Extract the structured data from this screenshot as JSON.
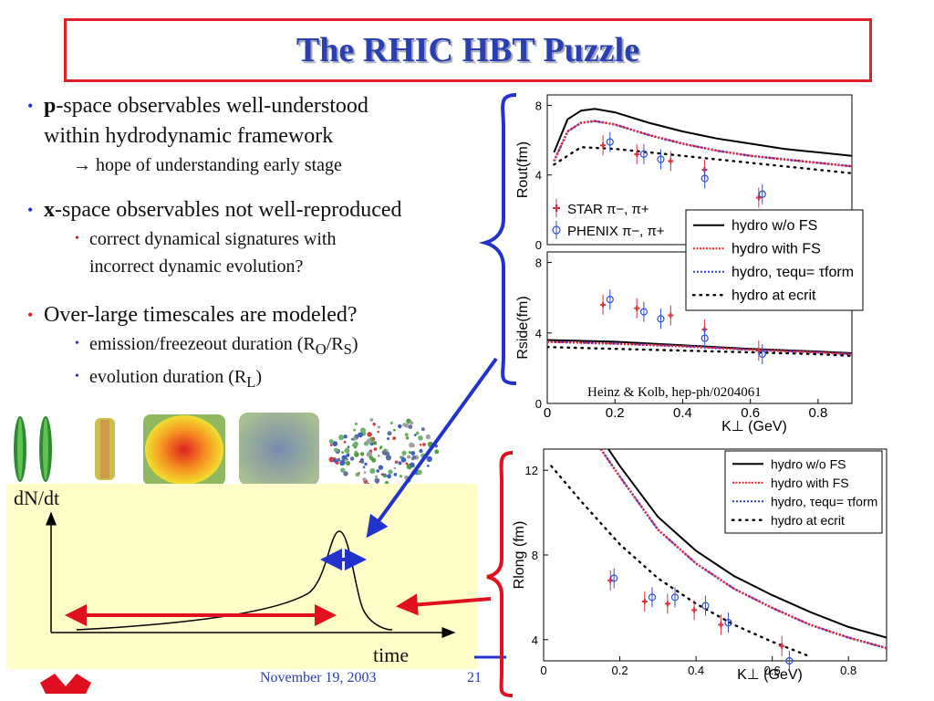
{
  "slide": {
    "title": "The RHIC HBT Puzzle",
    "footer_date": "November 19, 2003",
    "footer_page": "21",
    "credit": "Heinz & Kolb, hep-ph/0204061"
  },
  "bullets": {
    "b1_bold": "p",
    "b1_rest": "-space observables well-understood",
    "b1_line2": "within hydrodynamic framework",
    "b1_sub": "→ hope of understanding early stage",
    "b2_bold": "x",
    "b2_rest": "-space observables not well-reproduced",
    "b2_sub1_line1": "correct dynamical signatures with",
    "b2_sub1_line2": "incorrect dynamic evolution?",
    "b3": "Over-large timescales are modeled?",
    "b3_sub1_a": "emission/freezeout duration (R",
    "b3_sub1_sub1": "O",
    "b3_sub1_b": "/R",
    "b3_sub1_sub2": "S",
    "b3_sub1_c": ")",
    "b3_sub2_a": "evolution duration (R",
    "b3_sub2_sub": "L",
    "b3_sub2_b": ")"
  },
  "sketch": {
    "ylabel": "dN/dt",
    "xlabel": "time"
  },
  "colors": {
    "title": "#2a3fb0",
    "title_border": "#e0202a",
    "bullet_blue": "#2233cc",
    "bullet_red": "#d6202a",
    "panel_yellow": "#fffdc8",
    "star_color": "#e03040",
    "phenix_color": "#3050d0"
  },
  "chart_data": [
    {
      "type": "line",
      "panel": "R_out",
      "ylabel": "Rout(fm)",
      "xlim": [
        0,
        0.9
      ],
      "ylim": [
        0,
        8.6
      ],
      "yticks": [
        0,
        4,
        8
      ],
      "series": [
        {
          "name": "hydro w/o FS",
          "x": [
            0.02,
            0.06,
            0.1,
            0.14,
            0.2,
            0.3,
            0.4,
            0.5,
            0.6,
            0.7,
            0.8,
            0.9
          ],
          "y": [
            5.3,
            7.2,
            7.7,
            7.8,
            7.6,
            7.0,
            6.5,
            6.1,
            5.8,
            5.5,
            5.3,
            5.1
          ]
        },
        {
          "name": "hydro with FS",
          "x": [
            0.02,
            0.06,
            0.1,
            0.14,
            0.2,
            0.3,
            0.4,
            0.5,
            0.6,
            0.7,
            0.8,
            0.9
          ],
          "y": [
            4.8,
            6.5,
            7.0,
            7.1,
            6.9,
            6.3,
            5.8,
            5.4,
            5.1,
            4.9,
            4.7,
            4.5
          ]
        },
        {
          "name": "hydro at ecrit",
          "x": [
            0.02,
            0.1,
            0.2,
            0.3,
            0.4,
            0.5,
            0.6,
            0.7,
            0.8,
            0.9
          ],
          "y": [
            4.6,
            5.6,
            5.5,
            5.3,
            5.1,
            4.9,
            4.7,
            4.5,
            4.3,
            4.1
          ]
        },
        {
          "name": "STAR π−, π+",
          "x": [
            0.17,
            0.27,
            0.37,
            0.47,
            0.63
          ],
          "y": [
            5.7,
            5.2,
            4.8,
            4.3,
            2.7
          ]
        },
        {
          "name": "PHENIX π−, π+",
          "x": [
            0.18,
            0.28,
            0.33,
            0.46,
            0.63
          ],
          "y": [
            5.9,
            5.2,
            4.9,
            3.8,
            2.9
          ]
        }
      ],
      "legend": [
        "STAR π−, π+",
        "PHENIX π−, π+"
      ]
    },
    {
      "type": "line",
      "panel": "R_side",
      "ylabel": "Rside(fm)",
      "xlabel": "K⊥ (GeV)",
      "xlim": [
        0,
        0.9
      ],
      "ylim": [
        0,
        8.6
      ],
      "xticks": [
        0,
        0.2,
        0.4,
        0.6,
        0.8
      ],
      "yticks": [
        0,
        4,
        8
      ],
      "series": [
        {
          "name": "hydro w/o FS",
          "x": [
            0,
            0.2,
            0.4,
            0.6,
            0.8,
            0.9
          ],
          "y": [
            3.6,
            3.5,
            3.3,
            3.1,
            2.95,
            2.85
          ]
        },
        {
          "name": "hydro with FS",
          "x": [
            0,
            0.2,
            0.4,
            0.6,
            0.8,
            0.9
          ],
          "y": [
            3.5,
            3.4,
            3.25,
            3.05,
            2.9,
            2.8
          ]
        },
        {
          "name": "hydro at ecrit",
          "x": [
            0,
            0.2,
            0.4,
            0.6,
            0.8,
            0.9
          ],
          "y": [
            3.2,
            3.1,
            3.0,
            2.9,
            2.8,
            2.7
          ]
        },
        {
          "name": "STAR π−, π+",
          "x": [
            0.17,
            0.27,
            0.37,
            0.47,
            0.63
          ],
          "y": [
            5.6,
            5.4,
            5.0,
            4.2,
            3.0
          ]
        },
        {
          "name": "PHENIX π−, π+",
          "x": [
            0.18,
            0.28,
            0.33,
            0.46,
            0.63
          ],
          "y": [
            5.9,
            5.2,
            4.8,
            3.7,
            2.8
          ]
        }
      ],
      "legend": [
        "hydro w/o FS",
        "hydro with FS",
        "hydro, τequ= τform",
        "hydro at ecrit"
      ]
    },
    {
      "type": "line",
      "panel": "R_long",
      "ylabel": "Rlong (fm)",
      "xlabel": "K⊥ (GeV)",
      "xlim": [
        0,
        0.9
      ],
      "ylim": [
        3,
        13
      ],
      "xticks": [
        0,
        0.2,
        0.4,
        0.6,
        0.8
      ],
      "yticks": [
        4,
        8,
        12
      ],
      "series": [
        {
          "name": "hydro w/o FS",
          "x": [
            0.17,
            0.2,
            0.3,
            0.4,
            0.5,
            0.6,
            0.7,
            0.8,
            0.9
          ],
          "y": [
            13,
            12.2,
            9.8,
            8.2,
            7.0,
            6.1,
            5.3,
            4.6,
            4.1
          ]
        },
        {
          "name": "hydro with FS",
          "x": [
            0.15,
            0.2,
            0.3,
            0.4,
            0.5,
            0.6,
            0.7,
            0.8,
            0.9
          ],
          "y": [
            13,
            11.7,
            9.2,
            7.6,
            6.4,
            5.5,
            4.7,
            4.1,
            3.6
          ]
        },
        {
          "name": "hydro at ecrit",
          "x": [
            0.02,
            0.1,
            0.2,
            0.3,
            0.4,
            0.5,
            0.6,
            0.7
          ],
          "y": [
            12.2,
            10.5,
            8.5,
            6.9,
            5.7,
            4.7,
            3.9,
            3.2
          ]
        },
        {
          "name": "STAR π−, π+",
          "x": [
            0.18,
            0.27,
            0.33,
            0.4,
            0.47,
            0.63
          ],
          "y": [
            6.8,
            5.8,
            5.7,
            5.4,
            4.7,
            3.7
          ]
        },
        {
          "name": "PHENIX π−, π+",
          "x": [
            0.18,
            0.28,
            0.34,
            0.42,
            0.48,
            0.64
          ],
          "y": [
            6.9,
            6.0,
            6.0,
            5.6,
            4.8,
            3.0
          ]
        }
      ],
      "legend": [
        "hydro w/o FS",
        "hydro with FS",
        "hydro, τequ= τform",
        "hydro at ecrit"
      ]
    }
  ]
}
